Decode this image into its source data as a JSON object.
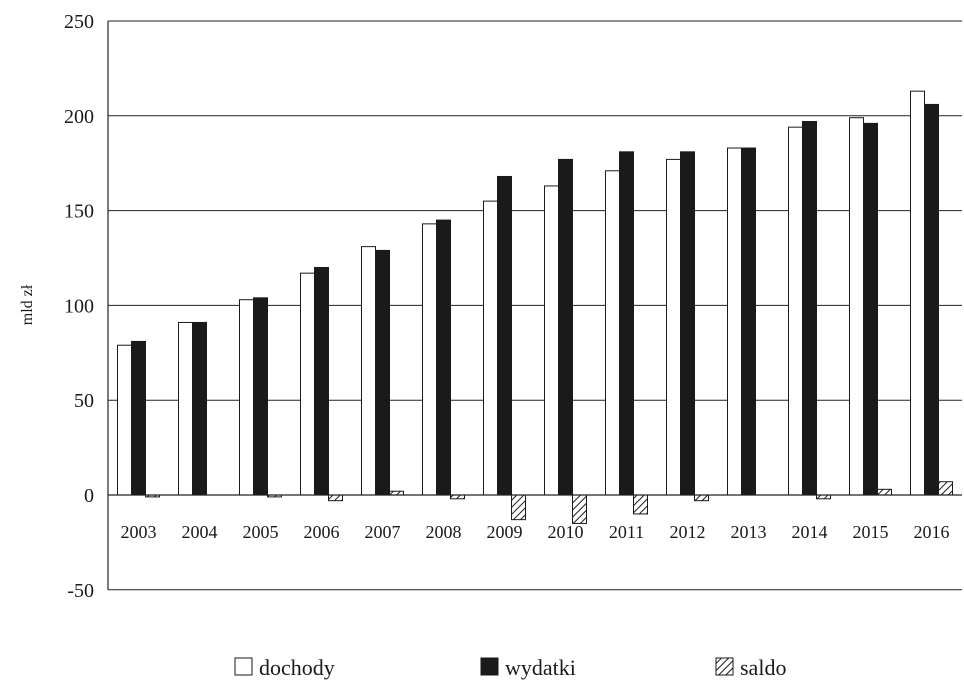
{
  "chart_data": {
    "type": "bar",
    "categories": [
      "2003",
      "2004",
      "2005",
      "2006",
      "2007",
      "2008",
      "2009",
      "2010",
      "2011",
      "2012",
      "2013",
      "2014",
      "2015",
      "2016"
    ],
    "series": [
      {
        "name": "dochody",
        "values": [
          79,
          91,
          103,
          117,
          131,
          143,
          155,
          163,
          171,
          177,
          183,
          194,
          199,
          213
        ]
      },
      {
        "name": "wydatki",
        "values": [
          81,
          91,
          104,
          120,
          129,
          145,
          168,
          177,
          181,
          181,
          183,
          197,
          196,
          206
        ]
      },
      {
        "name": "saldo",
        "values": [
          -1,
          0,
          -1,
          -3,
          2,
          -2,
          -13,
          -15,
          -10,
          -3,
          0,
          -2,
          3,
          7
        ]
      }
    ],
    "colors": {
      "dochody": "#ffffff",
      "wydatki": "#1a1a1a",
      "saldo": "hatch"
    },
    "xlabel": "",
    "ylabel": "mld zł",
    "ylim": [
      -50,
      250
    ],
    "yticks": [
      "-50",
      "0",
      "50",
      "100",
      "150",
      "200",
      "250"
    ],
    "grid": true,
    "legend": "bottom"
  }
}
